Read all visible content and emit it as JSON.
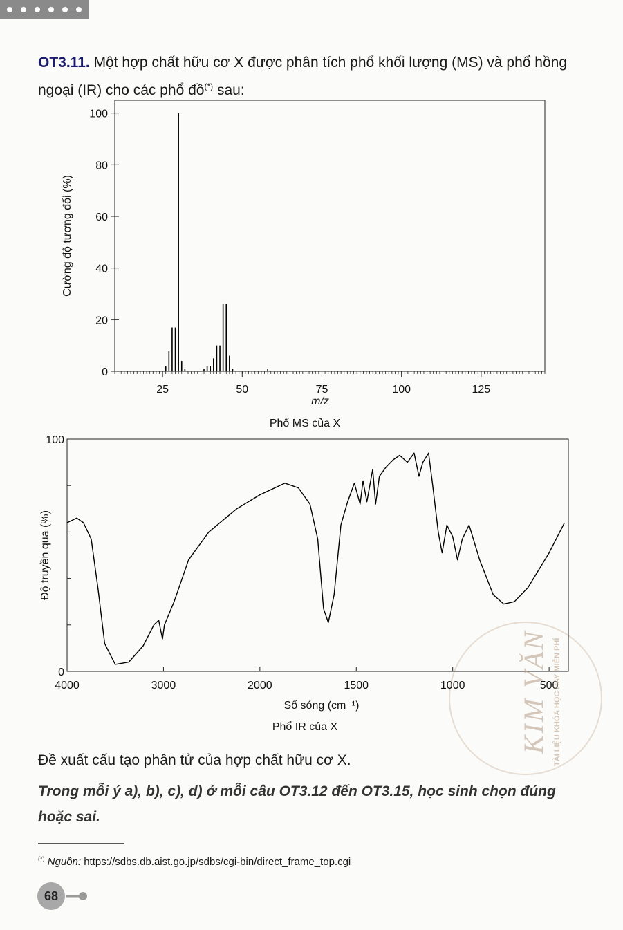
{
  "question": {
    "number": "OT3.11.",
    "text": "Một hợp chất hữu cơ X được phân tích phổ khối lượng (MS) và phổ hồng ngoại (IR) cho các phổ đồ",
    "note_mark": "(*)",
    "text_end": "sau:"
  },
  "chart_data": [
    {
      "type": "bar",
      "ylabel": "Cường độ tương đối (%)",
      "xlabel": "m/z",
      "caption": "Phổ MS của X",
      "x": [
        26,
        27,
        28,
        29,
        30,
        31,
        32,
        38,
        39,
        40,
        41,
        42,
        43,
        44,
        45,
        46,
        47,
        58
      ],
      "values": [
        2,
        8,
        17,
        17,
        100,
        4,
        1,
        1,
        2,
        2,
        5,
        10,
        10,
        26,
        26,
        6,
        1,
        1
      ],
      "color": "#000000",
      "xlim": [
        10,
        145
      ],
      "ylim": [
        0,
        105
      ],
      "xticks": [
        25,
        50,
        75,
        100,
        125
      ],
      "yticks": [
        0,
        20,
        40,
        60,
        80,
        100
      ],
      "xminorstep": 1
    },
    {
      "type": "line",
      "ylabel": "Độ truyền qua (%)",
      "xlabel": "Số sóng (cm⁻¹)",
      "caption": "Phổ IR của X",
      "x": [
        4000,
        3900,
        3830,
        3750,
        3680,
        3610,
        3500,
        3360,
        3210,
        3100,
        3050,
        3010,
        2990,
        2890,
        2740,
        2530,
        2240,
        2000,
        1870,
        1800,
        1740,
        1700,
        1670,
        1645,
        1615,
        1580,
        1545,
        1510,
        1480,
        1465,
        1445,
        1415,
        1400,
        1380,
        1345,
        1310,
        1275,
        1235,
        1200,
        1175,
        1155,
        1125,
        1105,
        1075,
        1055,
        1030,
        1000,
        975,
        950,
        915,
        860,
        790,
        735,
        680,
        610,
        500,
        420
      ],
      "values": [
        64,
        66,
        64,
        57,
        36,
        12,
        3,
        4,
        11,
        20,
        22,
        14,
        20,
        30,
        48,
        60,
        70,
        76,
        81,
        79,
        72,
        57,
        27,
        21,
        33,
        63,
        73,
        81,
        72,
        82,
        73,
        87,
        72,
        84,
        88,
        91,
        93,
        90,
        94,
        84,
        90,
        94,
        81,
        60,
        51,
        63,
        58,
        48,
        57,
        63,
        48,
        33,
        29,
        30,
        36,
        51,
        64
      ],
      "color": "#000000",
      "xlim": [
        4000,
        400
      ],
      "xbreak": 2000,
      "ylim": [
        0,
        100
      ],
      "xticks": [
        4000,
        3000,
        2000,
        1500,
        1000,
        500
      ],
      "yticks": [
        0,
        100
      ],
      "yminorticks": [
        20,
        40,
        60,
        80
      ]
    }
  ],
  "prompt": "Đề xuất cấu tạo phân tử của hợp chất hữu cơ X.",
  "instruction": "Trong mỗi ý a), b), c), d) ở mỗi câu OT3.12 đến OT3.15, học sinh chọn đúng hoặc sai.",
  "footnote": {
    "mark": "(*)",
    "label": "Nguồn:",
    "url": "https://sdbs.db.aist.go.jp/sdbs/cgi-bin/direct_frame_top.cgi"
  },
  "page_number": "68",
  "watermark": {
    "brand": "KIM VĂN",
    "tagline": "TÀI LIỆU KHÓA HỌC HAY MIỄN PHÍ"
  }
}
